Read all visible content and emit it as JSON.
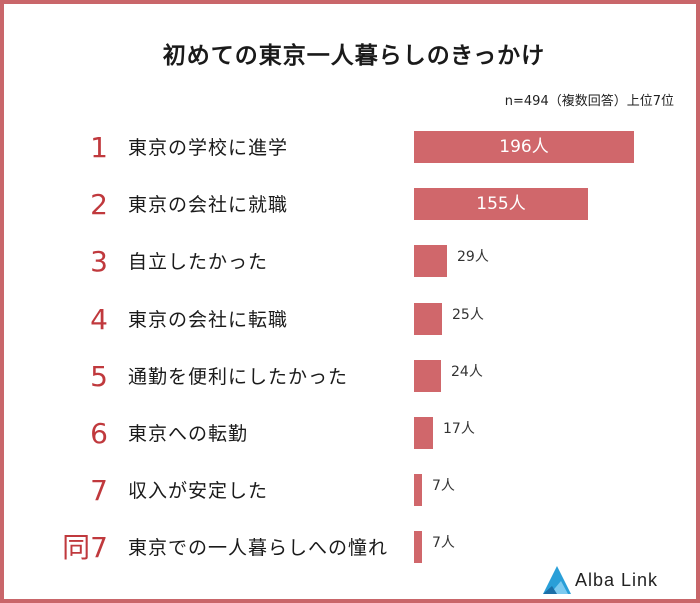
{
  "chart_data": {
    "type": "bar",
    "orientation": "horizontal",
    "title": "初めての東京一人暮らしのきっかけ",
    "subtitle": "n=494（複数回答）上位7位",
    "value_suffix": "人",
    "rows": [
      {
        "rank": "1",
        "label": "東京の学校に進学",
        "value": 196
      },
      {
        "rank": "2",
        "label": "東京の会社に就職",
        "value": 155
      },
      {
        "rank": "3",
        "label": "自立したかった",
        "value": 29
      },
      {
        "rank": "4",
        "label": "東京の会社に転職",
        "value": 25
      },
      {
        "rank": "5",
        "label": "通勤を便利にしたかった",
        "value": 24
      },
      {
        "rank": "6",
        "label": "東京への転勤",
        "value": 17
      },
      {
        "rank": "7",
        "label": "収入が安定した",
        "value": 7
      },
      {
        "rank": "同7",
        "label": "東京での一人暮らしへの憧れ",
        "value": 7
      }
    ],
    "bar_color": "#d0676b",
    "rank_color": "#c0393d",
    "grid": false,
    "legend": "none"
  },
  "brand": {
    "name": "Alba Link",
    "border_color": "#c9666a",
    "logo_color": "#2a9fd8"
  }
}
